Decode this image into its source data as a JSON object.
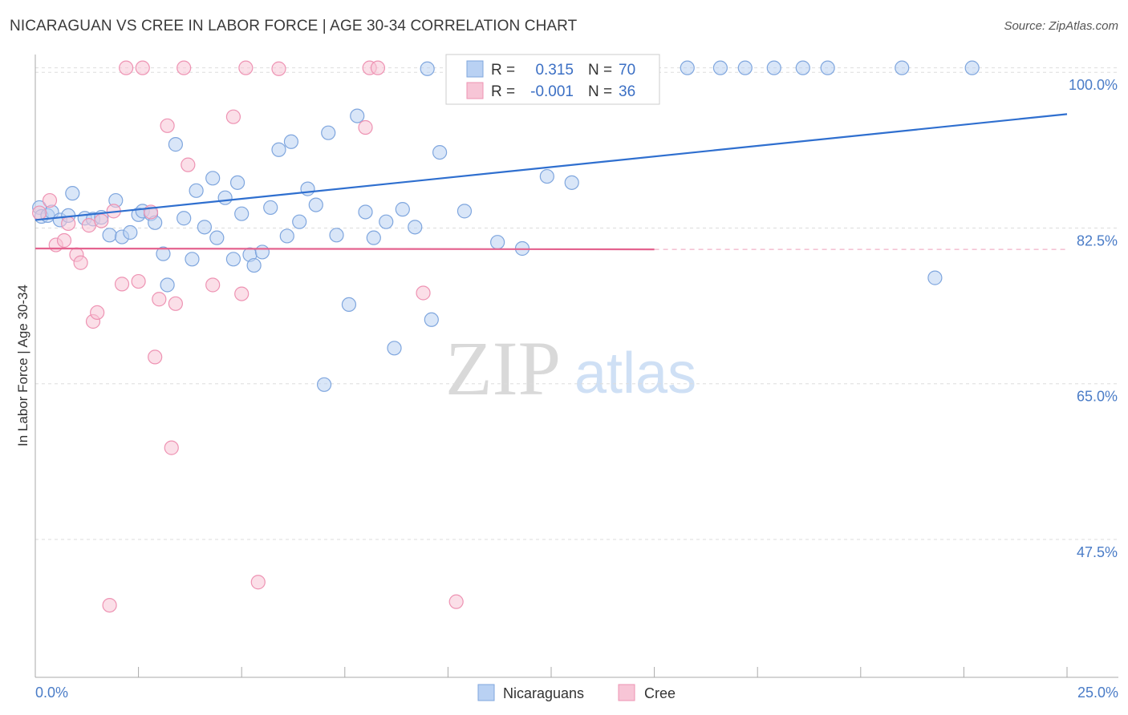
{
  "title": "NICARAGUAN VS CREE IN LABOR FORCE | AGE 30-34 CORRELATION CHART",
  "source": "Source: ZipAtlas.com",
  "watermark": {
    "zip": "ZIP",
    "atlas": "atlas"
  },
  "colors": {
    "blue_fill": "#b9d1f3",
    "blue_stroke": "#7fa6de",
    "blue_line": "#2f6fcf",
    "pink_fill": "#f7c5d6",
    "pink_stroke": "#ee93b3",
    "pink_line": "#e4638f",
    "axis_text": "#4a7cc7",
    "grid": "#dddddd"
  },
  "legend": {
    "rows": [
      {
        "r_label": "R =",
        "r_value": "0.315",
        "n_label": "N =",
        "n_value": "70"
      },
      {
        "r_label": "R =",
        "r_value": "-0.001",
        "n_label": "N =",
        "n_value": "36"
      }
    ]
  },
  "chart_data": {
    "type": "scatter",
    "xlabel": "",
    "ylabel": "In Labor Force | Age 30-34",
    "xlim": [
      0,
      25
    ],
    "ylim": [
      32,
      102
    ],
    "x_tick_labels": [
      "0.0%",
      "25.0%"
    ],
    "y_ticks": [
      100.0,
      82.5,
      65.0,
      47.5
    ],
    "y_tick_labels": [
      "100.0%",
      "82.5%",
      "65.0%",
      "47.5%"
    ],
    "series": [
      {
        "name": "Nicaraguans",
        "trend": {
          "x": [
            0,
            25
          ],
          "y": [
            83.4,
            95.3
          ]
        },
        "points": [
          [
            0.1,
            84.8
          ],
          [
            0.15,
            83.8
          ],
          [
            0.3,
            83.9
          ],
          [
            0.4,
            84.3
          ],
          [
            0.6,
            83.4
          ],
          [
            0.8,
            83.9
          ],
          [
            0.9,
            86.4
          ],
          [
            1.2,
            83.6
          ],
          [
            1.4,
            83.5
          ],
          [
            1.6,
            83.7
          ],
          [
            1.95,
            85.6
          ],
          [
            1.8,
            81.7
          ],
          [
            2.1,
            81.5
          ],
          [
            2.3,
            82.0
          ],
          [
            2.5,
            84.0
          ],
          [
            2.6,
            84.4
          ],
          [
            2.8,
            84.1
          ],
          [
            2.9,
            83.1
          ],
          [
            3.1,
            79.6
          ],
          [
            3.2,
            76.1
          ],
          [
            3.4,
            91.9
          ],
          [
            3.6,
            83.6
          ],
          [
            3.8,
            79.0
          ],
          [
            3.9,
            86.7
          ],
          [
            4.1,
            82.6
          ],
          [
            4.3,
            88.1
          ],
          [
            4.4,
            81.4
          ],
          [
            4.6,
            85.9
          ],
          [
            4.8,
            79.0
          ],
          [
            4.9,
            87.6
          ],
          [
            5.0,
            84.1
          ],
          [
            5.2,
            79.5
          ],
          [
            5.3,
            78.3
          ],
          [
            5.5,
            79.8
          ],
          [
            5.7,
            84.8
          ],
          [
            5.9,
            91.3
          ],
          [
            6.1,
            81.6
          ],
          [
            6.2,
            92.2
          ],
          [
            6.4,
            83.2
          ],
          [
            6.6,
            86.9
          ],
          [
            6.8,
            85.1
          ],
          [
            7.0,
            64.9
          ],
          [
            7.1,
            93.2
          ],
          [
            7.3,
            81.7
          ],
          [
            7.6,
            73.9
          ],
          [
            7.8,
            95.1
          ],
          [
            8.0,
            84.3
          ],
          [
            8.2,
            81.4
          ],
          [
            8.5,
            83.2
          ],
          [
            8.7,
            69.0
          ],
          [
            8.9,
            84.6
          ],
          [
            9.2,
            82.6
          ],
          [
            9.6,
            72.2
          ],
          [
            9.8,
            91.0
          ],
          [
            10.4,
            84.4
          ],
          [
            11.2,
            80.9
          ],
          [
            11.8,
            80.2
          ],
          [
            12.4,
            88.3
          ],
          [
            13.0,
            87.6
          ],
          [
            15.8,
            100.5
          ],
          [
            16.6,
            100.5
          ],
          [
            17.2,
            100.5
          ],
          [
            17.9,
            100.5
          ],
          [
            19.2,
            100.5
          ],
          [
            21.8,
            76.9
          ],
          [
            21.0,
            100.5
          ],
          [
            22.7,
            100.5
          ],
          [
            10.2,
            100.3
          ],
          [
            9.5,
            100.4
          ],
          [
            18.6,
            100.5
          ]
        ]
      },
      {
        "name": "Cree",
        "trend": {
          "x": [
            0,
            15
          ],
          "y": [
            80.2,
            80.1
          ]
        },
        "points": [
          [
            0.1,
            84.2
          ],
          [
            0.35,
            85.6
          ],
          [
            0.5,
            80.6
          ],
          [
            0.7,
            81.1
          ],
          [
            0.8,
            83.0
          ],
          [
            1.0,
            79.5
          ],
          [
            1.1,
            78.6
          ],
          [
            1.3,
            82.8
          ],
          [
            1.4,
            72.0
          ],
          [
            1.5,
            73.0
          ],
          [
            1.6,
            83.3
          ],
          [
            1.8,
            40.1
          ],
          [
            1.9,
            84.4
          ],
          [
            2.1,
            76.2
          ],
          [
            2.2,
            100.5
          ],
          [
            2.5,
            76.5
          ],
          [
            2.6,
            100.5
          ],
          [
            2.8,
            84.3
          ],
          [
            2.9,
            68.0
          ],
          [
            3.0,
            74.5
          ],
          [
            3.2,
            94.0
          ],
          [
            3.3,
            57.8
          ],
          [
            3.4,
            74.0
          ],
          [
            3.6,
            100.5
          ],
          [
            3.7,
            89.6
          ],
          [
            4.3,
            76.1
          ],
          [
            4.8,
            95.0
          ],
          [
            5.0,
            75.1
          ],
          [
            5.1,
            100.5
          ],
          [
            5.4,
            42.7
          ],
          [
            8.0,
            93.8
          ],
          [
            8.1,
            100.5
          ],
          [
            8.3,
            100.5
          ],
          [
            9.4,
            75.2
          ],
          [
            10.2,
            40.5
          ],
          [
            5.9,
            100.4
          ]
        ]
      }
    ]
  },
  "bottom_legend": [
    {
      "label": "Nicaraguans"
    },
    {
      "label": "Cree"
    }
  ]
}
